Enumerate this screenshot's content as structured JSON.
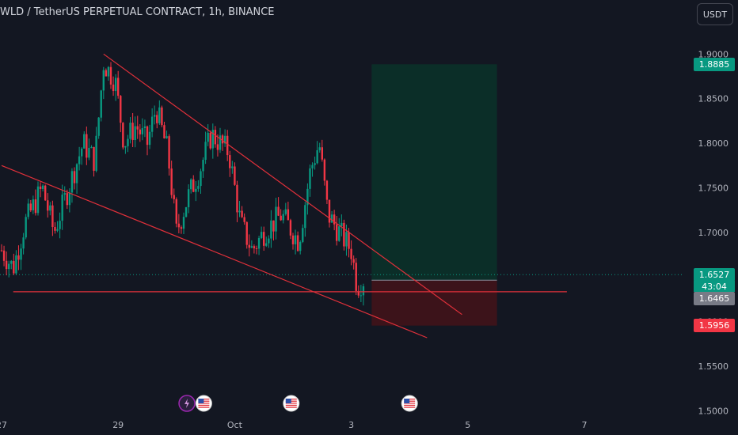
{
  "header": {
    "title": "WLD / TetherUS PERPETUAL CONTRACT, 1h, BINANCE",
    "currency_button": "USDT"
  },
  "colors": {
    "background": "#131722",
    "up": "#089981",
    "down": "#f23645",
    "line": "#e0303a",
    "target_zone": "#0b2e28",
    "stop_zone": "#3c131a"
  },
  "labels": {
    "current_price": "1.6527",
    "countdown": "43:04",
    "entry_price": "1.6465",
    "target_price": "1.8885",
    "stop_price": "1.5956"
  },
  "event_icons": [
    {
      "name": "lightning-event-icon",
      "x_day": 3.18
    },
    {
      "name": "us-flag-icon",
      "x_day": 3.47
    },
    {
      "name": "us-flag-icon",
      "x_day": 4.97
    },
    {
      "name": "us-flag-icon",
      "x_day": 7.0
    }
  ],
  "chart_data": {
    "type": "candlestick",
    "title": "WLD / TetherUS PERPETUAL CONTRACT, 1h, BINANCE",
    "x_ticks": [
      {
        "label": "27",
        "day": 0
      },
      {
        "label": "29",
        "day": 2
      },
      {
        "label": "Oct",
        "day": 4
      },
      {
        "label": "3",
        "day": 6
      },
      {
        "label": "5",
        "day": 8
      },
      {
        "label": "7",
        "day": 10
      }
    ],
    "y_ticks": [
      "1.9000",
      "1.8500",
      "1.8000",
      "1.7500",
      "1.7000",
      "1.6500",
      "1.6000",
      "1.5500",
      "1.5000"
    ],
    "ylim": [
      1.5,
      1.94
    ],
    "xlim_days": [
      0,
      12.6
    ],
    "path_points": [
      [
        0.0,
        1.68
      ],
      [
        0.2,
        1.66
      ],
      [
        0.4,
        1.71
      ],
      [
        0.7,
        1.75
      ],
      [
        0.9,
        1.7
      ],
      [
        1.1,
        1.74
      ],
      [
        1.4,
        1.8
      ],
      [
        1.6,
        1.78
      ],
      [
        1.75,
        1.89
      ],
      [
        1.95,
        1.87
      ],
      [
        2.1,
        1.8
      ],
      [
        2.3,
        1.82
      ],
      [
        2.5,
        1.8
      ],
      [
        2.65,
        1.84
      ],
      [
        2.85,
        1.79
      ],
      [
        3.0,
        1.7
      ],
      [
        3.2,
        1.74
      ],
      [
        3.4,
        1.77
      ],
      [
        3.6,
        1.81
      ],
      [
        3.9,
        1.79
      ],
      [
        4.1,
        1.71
      ],
      [
        4.3,
        1.68
      ],
      [
        4.5,
        1.7
      ],
      [
        4.8,
        1.72
      ],
      [
        5.1,
        1.69
      ],
      [
        5.3,
        1.77
      ],
      [
        5.45,
        1.8
      ],
      [
        5.6,
        1.72
      ],
      [
        5.8,
        1.7
      ],
      [
        6.0,
        1.68
      ],
      [
        6.1,
        1.64
      ],
      [
        6.25,
        1.65
      ]
    ],
    "trendlines": [
      {
        "from": [
          1.75,
          1.9
        ],
        "to": [
          7.9,
          1.608
        ]
      },
      {
        "from": [
          0.0,
          1.775
        ],
        "to": [
          7.3,
          1.582
        ]
      }
    ],
    "horizontal_line": {
      "price": 1.6335,
      "from_day": 0.2,
      "to_day": 9.7
    },
    "position": {
      "from_day": 6.35,
      "to_day": 8.5,
      "entry": 1.6465,
      "target": 1.8885,
      "stop": 1.5956
    },
    "current_price_line": 1.6527
  }
}
